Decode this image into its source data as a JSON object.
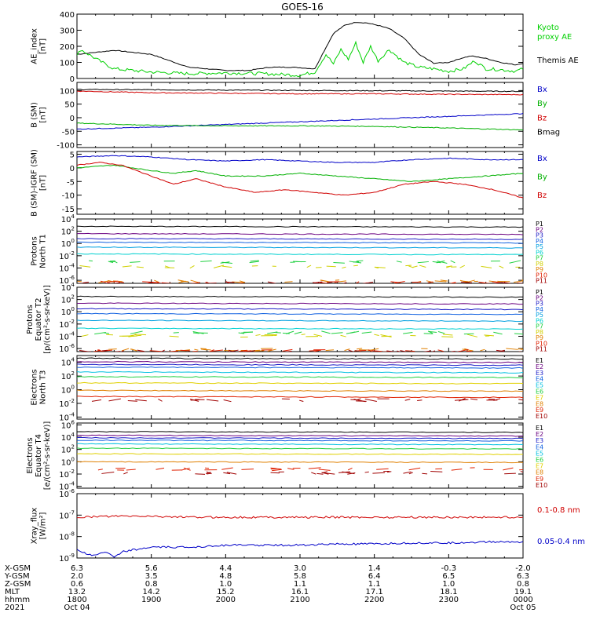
{
  "title": "GOES-16",
  "chart_data": [
    {
      "type": "line",
      "ylabel": "AE_index\n[nT]",
      "ylim": [
        0,
        400
      ],
      "yticks": [
        {
          "v": 0,
          "t": "0"
        },
        {
          "v": 100,
          "t": "100"
        },
        {
          "v": 200,
          "t": "200"
        },
        {
          "v": 300,
          "t": "300"
        },
        {
          "v": 400,
          "t": "400"
        }
      ],
      "legend": [
        {
          "text": "Kyoto",
          "color": "#00d000"
        },
        {
          "text": "proxy AE",
          "color": "#00d000"
        },
        {
          "text": "Themis AE",
          "color": "#000000"
        }
      ],
      "series": [
        {
          "name": "Themis AE",
          "color": "#000000",
          "x": [
            0,
            0.5,
            1,
            1.5,
            2,
            2.3,
            2.6,
            2.9,
            3.2,
            3.3,
            3.45,
            3.6,
            3.75,
            3.9,
            4.05,
            4.2,
            4.4,
            4.6,
            4.8,
            5,
            5.2,
            5.3,
            5.5,
            5.7,
            5.9,
            6
          ],
          "y": [
            150,
            175,
            150,
            70,
            50,
            50,
            70,
            70,
            60,
            150,
            280,
            330,
            350,
            345,
            330,
            310,
            250,
            150,
            95,
            100,
            130,
            140,
            125,
            100,
            85,
            95
          ]
        },
        {
          "name": "Kyoto proxy AE",
          "color": "#00d000",
          "x": [
            0,
            0.05,
            0.3,
            0.5,
            1,
            1.5,
            2,
            2.5,
            3,
            3.2,
            3.35,
            3.45,
            3.55,
            3.65,
            3.75,
            3.85,
            3.95,
            4.05,
            4.2,
            4.4,
            4.6,
            4.8,
            5,
            5.2,
            5.35,
            5.5,
            5.7,
            5.9,
            6
          ],
          "y": [
            140,
            180,
            110,
            60,
            40,
            30,
            35,
            30,
            20,
            40,
            150,
            90,
            180,
            120,
            220,
            100,
            200,
            110,
            180,
            100,
            70,
            60,
            45,
            60,
            110,
            60,
            55,
            45,
            60
          ]
        }
      ]
    },
    {
      "type": "line",
      "ylabel": "B (SM)\n[nT]",
      "ylim": [
        -110,
        130
      ],
      "yticks": [
        {
          "v": -100,
          "t": "-100"
        },
        {
          "v": -50,
          "t": "-50"
        },
        {
          "v": 0,
          "t": "0"
        },
        {
          "v": 50,
          "t": "50"
        },
        {
          "v": 100,
          "t": "100"
        }
      ],
      "legend": [
        {
          "text": "Bx",
          "color": "#0000c8"
        },
        {
          "text": "By",
          "color": "#00b000"
        },
        {
          "text": "Bz",
          "color": "#d00000"
        },
        {
          "text": "Bmag",
          "color": "#000000"
        }
      ],
      "series": [
        {
          "name": "Bmag",
          "color": "#000000",
          "x": [
            0,
            6
          ],
          "y": [
            104,
            97
          ]
        },
        {
          "name": "Bz",
          "color": "#d00000",
          "x": [
            0,
            1,
            2,
            3,
            4,
            5,
            6
          ],
          "y": [
            98,
            92,
            90,
            88,
            88,
            86,
            85
          ]
        },
        {
          "name": "Bx",
          "color": "#0000c8",
          "x": [
            0,
            1,
            2,
            3,
            4,
            5,
            6
          ],
          "y": [
            -42,
            -35,
            -25,
            -15,
            -5,
            5,
            15
          ]
        },
        {
          "name": "By",
          "color": "#00b000",
          "x": [
            0,
            1,
            2,
            3,
            4,
            5,
            6
          ],
          "y": [
            -20,
            -28,
            -30,
            -30,
            -32,
            -38,
            -45
          ]
        }
      ]
    },
    {
      "type": "line",
      "ylabel": "B (SM)-IGRF (SM)\n[nT]",
      "ylim": [
        -17,
        6
      ],
      "yticks": [
        {
          "v": -15,
          "t": "-15"
        },
        {
          "v": -10,
          "t": "-10"
        },
        {
          "v": -5,
          "t": "-5"
        },
        {
          "v": 0,
          "t": "0"
        },
        {
          "v": 5,
          "t": "5"
        }
      ],
      "legend": [
        {
          "text": "Bx",
          "color": "#0000c8"
        },
        {
          "text": "By",
          "color": "#00b000"
        },
        {
          "text": "Bz",
          "color": "#d00000"
        }
      ],
      "series": [
        {
          "name": "Bx",
          "color": "#0000c8",
          "x": [
            0,
            0.5,
            1,
            1.5,
            2,
            2.5,
            3,
            3.5,
            4,
            4.5,
            5,
            5.5,
            6
          ],
          "y": [
            4,
            4.5,
            4,
            3,
            2.5,
            3,
            2.5,
            2,
            2,
            3,
            3.5,
            3,
            3
          ]
        },
        {
          "name": "By",
          "color": "#00b000",
          "x": [
            0,
            0.5,
            1,
            1.3,
            1.6,
            2,
            2.5,
            3,
            3.5,
            4,
            4.5,
            5,
            5.5,
            6
          ],
          "y": [
            0,
            1,
            -1,
            -2,
            -1,
            -3,
            -3,
            -2,
            -3,
            -4,
            -5,
            -4,
            -3,
            -2
          ]
        },
        {
          "name": "Bz",
          "color": "#d00000",
          "x": [
            0,
            0.3,
            0.6,
            1,
            1.3,
            1.6,
            2,
            2.4,
            2.8,
            3.2,
            3.6,
            4,
            4.4,
            4.8,
            5.2,
            5.6,
            6
          ],
          "y": [
            1,
            2,
            1,
            -3,
            -6,
            -4,
            -7,
            -9,
            -8,
            -9,
            -10,
            -9,
            -6,
            -5,
            -6,
            -8,
            -11
          ]
        }
      ]
    },
    {
      "type": "line",
      "log": true,
      "ylabel": "Protons\nNorth T1",
      "ylim": [
        -6.5,
        4
      ],
      "yticks": [
        {
          "v": 4,
          "t": "10^4"
        },
        {
          "v": 2,
          "t": "10^2"
        },
        {
          "v": 0,
          "t": "10^0"
        },
        {
          "v": -2,
          "t": "10^-2"
        },
        {
          "v": -4,
          "t": "10^-4"
        },
        {
          "v": -6,
          "t": "10^-6"
        }
      ],
      "channels": [
        {
          "name": "P1",
          "color": "#000000",
          "level": 2.8
        },
        {
          "name": "P2",
          "color": "#6a0080",
          "level": 1.6
        },
        {
          "name": "P3",
          "color": "#2020c8",
          "level": 0.8
        },
        {
          "name": "P4",
          "color": "#1060e0",
          "level": 0.2
        },
        {
          "name": "P5",
          "color": "#00a0e0",
          "level": -0.6
        },
        {
          "name": "P6",
          "color": "#00d0d0",
          "level": -1.7
        },
        {
          "name": "P7",
          "color": "#20d040",
          "level": -3
        },
        {
          "name": "P8",
          "color": "#d0d000",
          "level": -3.8
        },
        {
          "name": "P9",
          "color": "#e08000",
          "level": -6.2
        },
        {
          "name": "P10",
          "color": "#e02000",
          "level": -6.4
        },
        {
          "name": "P11",
          "color": "#a00000",
          "level": -6.5
        }
      ]
    },
    {
      "type": "line",
      "log": true,
      "ylabel": "Protons\nEquator T2\n[p/(cm²-s-sr-keV)]",
      "ylim": [
        -6.5,
        4
      ],
      "yticks": [
        {
          "v": 4,
          "t": "10^4"
        },
        {
          "v": 2,
          "t": "10^2"
        },
        {
          "v": 0,
          "t": "10^0"
        },
        {
          "v": -2,
          "t": "10^-2"
        },
        {
          "v": -4,
          "t": "10^-4"
        },
        {
          "v": -6,
          "t": "10^-6"
        }
      ],
      "channels": [
        {
          "name": "P1",
          "color": "#000000",
          "level": 2.5
        },
        {
          "name": "P2",
          "color": "#6a0080",
          "level": 1.4
        },
        {
          "name": "P3",
          "color": "#2020c8",
          "level": 0.5
        },
        {
          "name": "P4",
          "color": "#1060e0",
          "level": -0.3
        },
        {
          "name": "P5",
          "color": "#00a0e0",
          "level": -1.4
        },
        {
          "name": "P6",
          "color": "#00d0d0",
          "level": -2.7
        },
        {
          "name": "P7",
          "color": "#20d040",
          "level": -3.4
        },
        {
          "name": "P8",
          "color": "#d0d000",
          "level": -3.9
        },
        {
          "name": "P9",
          "color": "#e08000",
          "level": -6.2
        },
        {
          "name": "P10",
          "color": "#e02000",
          "level": -6.4
        },
        {
          "name": "P11",
          "color": "#a00000",
          "level": -6.5
        }
      ]
    },
    {
      "type": "line",
      "log": true,
      "ylabel": "Electrons\nNorth T3",
      "ylim": [
        -4.3,
        5
      ],
      "yticks": [
        {
          "v": 4,
          "t": "10^4"
        },
        {
          "v": 2,
          "t": "10^2"
        },
        {
          "v": 0,
          "t": "10^0"
        },
        {
          "v": -2,
          "t": "10^-2"
        },
        {
          "v": -4,
          "t": "10^-4"
        }
      ],
      "channels": [
        {
          "name": "E1",
          "color": "#000000",
          "level": 4.6
        },
        {
          "name": "E2",
          "color": "#6a0080",
          "level": 4.1
        },
        {
          "name": "E3",
          "color": "#2020c8",
          "level": 3.7
        },
        {
          "name": "E4",
          "color": "#1060e0",
          "level": 3.3
        },
        {
          "name": "E5",
          "color": "#00c0e0",
          "level": 2.6
        },
        {
          "name": "E6",
          "color": "#20d040",
          "level": 1.9
        },
        {
          "name": "E7",
          "color": "#e0d000",
          "level": 1.0
        },
        {
          "name": "E8",
          "color": "#e08000",
          "level": -0.1
        },
        {
          "name": "E9",
          "color": "#e02000",
          "level": -1.0
        },
        {
          "name": "E10",
          "color": "#a00000",
          "level": -1.5
        }
      ]
    },
    {
      "type": "line",
      "log": true,
      "ylabel": "Electrons\nEquator T4\n[e/(cm²-s-sr-keV)]",
      "ylim": [
        -4.3,
        6.3
      ],
      "yticks": [
        {
          "v": 6,
          "t": "10^6"
        },
        {
          "v": 4,
          "t": "10^4"
        },
        {
          "v": 2,
          "t": "10^2"
        },
        {
          "v": 0,
          "t": "10^0"
        },
        {
          "v": -2,
          "t": "10^-2"
        },
        {
          "v": -4,
          "t": "10^-4"
        }
      ],
      "channels": [
        {
          "name": "E1",
          "color": "#000000",
          "level": 4.9
        },
        {
          "name": "E2",
          "color": "#6a0080",
          "level": 4.3
        },
        {
          "name": "E3",
          "color": "#2020c8",
          "level": 3.9
        },
        {
          "name": "E4",
          "color": "#1060e0",
          "level": 3.5
        },
        {
          "name": "E5",
          "color": "#00c0e0",
          "level": 2.9
        },
        {
          "name": "E6",
          "color": "#20d040",
          "level": 2.2
        },
        {
          "name": "E7",
          "color": "#e0d000",
          "level": 1.3
        },
        {
          "name": "E8",
          "color": "#e08000",
          "level": 0.0
        },
        {
          "name": "E9",
          "color": "#e02000",
          "level": -1.2
        },
        {
          "name": "E10",
          "color": "#a00000",
          "level": -1.8
        }
      ]
    },
    {
      "type": "line",
      "log": true,
      "ylabel": "Xray_flux\n[W/m²]",
      "ylim": [
        -9,
        -6
      ],
      "yticks": [
        {
          "v": -6,
          "t": "10^-6"
        },
        {
          "v": -7,
          "t": "10^-7"
        },
        {
          "v": -8,
          "t": "10^-8"
        },
        {
          "v": -9,
          "t": "10^-9"
        }
      ],
      "legend": [
        {
          "text": "0.1-0.8 nm",
          "color": "#d00000"
        },
        {
          "text": "0.05-0.4 nm",
          "color": "#0000c8"
        }
      ],
      "series": [
        {
          "name": "0.1-0.8 nm",
          "color": "#d00000",
          "x": [
            0,
            0.5,
            1,
            1.5,
            2,
            3,
            4,
            5,
            6
          ],
          "y": [
            -7.1,
            -7.05,
            -7.05,
            -7.1,
            -7.1,
            -7.1,
            -7.1,
            -7.1,
            -7.1
          ]
        },
        {
          "name": "0.05-0.4 nm",
          "color": "#0000c8",
          "x": [
            0,
            0.2,
            0.4,
            0.5,
            0.6,
            0.8,
            1,
            1.5,
            2,
            2.5,
            3,
            3.5,
            4,
            4.5,
            5,
            5.5,
            6
          ],
          "y": [
            -8.6,
            -8.9,
            -8.7,
            -9.0,
            -8.7,
            -8.6,
            -8.5,
            -8.5,
            -8.4,
            -8.4,
            -8.4,
            -8.35,
            -8.35,
            -8.3,
            -8.3,
            -8.25,
            -8.25
          ]
        }
      ]
    }
  ],
  "x_axis": {
    "xlim": [
      0,
      6
    ],
    "rows": [
      {
        "label": "X-GSM",
        "values": [
          "6.3",
          "5.6",
          "4.4",
          "3.0",
          "1.4",
          "-0.3",
          "-2.0"
        ]
      },
      {
        "label": "Y-GSM",
        "values": [
          "2.0",
          "3.5",
          "4.8",
          "5.8",
          "6.4",
          "6.5",
          "6.3"
        ]
      },
      {
        "label": "Z-GSM",
        "values": [
          "0.6",
          "0.8",
          "1.0",
          "1.1",
          "1.1",
          "1.0",
          "0.8"
        ]
      },
      {
        "label": "MLT",
        "values": [
          "13.2",
          "14.2",
          "15.2",
          "16.1",
          "17.1",
          "18.1",
          "19.1"
        ]
      },
      {
        "label": "hhmm",
        "values": [
          "1800",
          "1900",
          "2000",
          "2100",
          "2200",
          "2300",
          "0000"
        ]
      },
      {
        "label": "2021",
        "values": [
          "Oct 04",
          "",
          "",
          "",
          "",
          "",
          "Oct 05"
        ]
      }
    ]
  }
}
